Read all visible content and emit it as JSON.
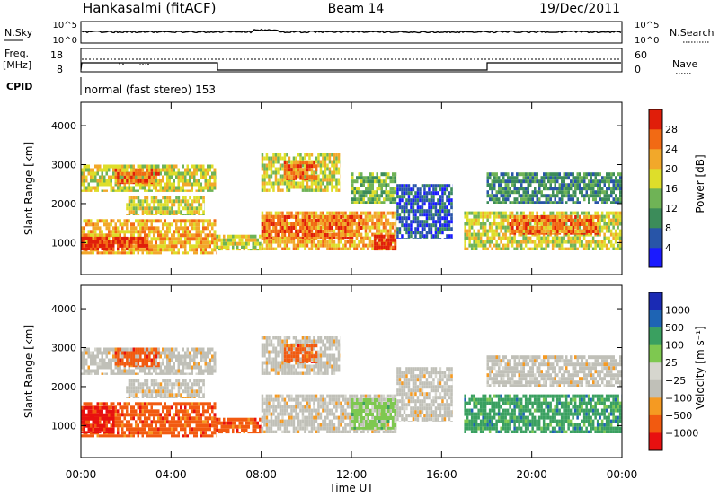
{
  "header": {
    "station": "Hankasalmi (fitACF)",
    "beam": "Beam 14",
    "date": "19/Dec/2011"
  },
  "noise_panel": {
    "left_label": "N.Sky",
    "right_label": "N.Search",
    "ticks": [
      "10^5",
      "10^0"
    ]
  },
  "freq_panel": {
    "left_label_line1": "Freq.",
    "left_label_line2": "[MHz]",
    "left_ticks": [
      "18",
      "8"
    ],
    "right_ticks": [
      "60",
      "0"
    ],
    "right_label": "Nave"
  },
  "cpid": {
    "label": "CPID",
    "text": "normal (fast stereo) 153"
  },
  "colors": {
    "power": [
      "#1a1aff",
      "#2855a8",
      "#3c8c5a",
      "#6fb356",
      "#dede2a",
      "#f2a82a",
      "#f26a14",
      "#e01e0a"
    ],
    "velocity": [
      "#e81010",
      "#f25a10",
      "#f59a22",
      "#c0c0b8",
      "#d6d6ce",
      "#7ec850",
      "#3aa060",
      "#1e64b4",
      "#1a2ab4"
    ]
  },
  "chart_data": [
    {
      "type": "heatmap",
      "name": "power",
      "ylabel": "Slant Range [km]",
      "xlabel": "",
      "x_ticks": [
        "00:00",
        "04:00",
        "08:00",
        "12:00",
        "16:00",
        "20:00",
        "00:00"
      ],
      "y_ticks": [
        "1000",
        "2000",
        "3000",
        "4000"
      ],
      "ylim": [
        180,
        4600
      ],
      "xlim_hours": [
        0,
        24
      ],
      "colorbar_label": "Power [dB]",
      "colorbar_ticks": [
        "4",
        "8",
        "12",
        "16",
        "20",
        "24",
        "28"
      ],
      "colorbar_range": [
        0,
        32
      ],
      "regions": [
        {
          "t": [
            0.0,
            6.0
          ],
          "r": [
            700,
            1600
          ],
          "v": 22
        },
        {
          "t": [
            0.0,
            3.0
          ],
          "r": [
            800,
            1150
          ],
          "v": 30
        },
        {
          "t": [
            0.0,
            6.0
          ],
          "r": [
            2300,
            3000
          ],
          "v": 18
        },
        {
          "t": [
            1.5,
            3.5
          ],
          "r": [
            2500,
            2900
          ],
          "v": 26
        },
        {
          "t": [
            2.0,
            5.5
          ],
          "r": [
            1700,
            2200
          ],
          "v": 16
        },
        {
          "t": [
            6.0,
            8.0
          ],
          "r": [
            800,
            1200
          ],
          "v": 16
        },
        {
          "t": [
            8.0,
            14.0
          ],
          "r": [
            800,
            1800
          ],
          "v": 22
        },
        {
          "t": [
            8.0,
            12.5
          ],
          "r": [
            1100,
            1700
          ],
          "v": 27
        },
        {
          "t": [
            13.0,
            14.0
          ],
          "r": [
            800,
            1200
          ],
          "v": 28
        },
        {
          "t": [
            8.0,
            11.5
          ],
          "r": [
            2300,
            3300
          ],
          "v": 18
        },
        {
          "t": [
            9.0,
            10.5
          ],
          "r": [
            2600,
            3100
          ],
          "v": 25
        },
        {
          "t": [
            12.0,
            14.0
          ],
          "r": [
            2000,
            2800
          ],
          "v": 12
        },
        {
          "t": [
            14.0,
            16.5
          ],
          "r": [
            1100,
            2500
          ],
          "v": 6
        },
        {
          "t": [
            17.0,
            24.0
          ],
          "r": [
            800,
            1800
          ],
          "v": 17
        },
        {
          "t": [
            19.0,
            23.0
          ],
          "r": [
            1200,
            1700
          ],
          "v": 25
        },
        {
          "t": [
            18.0,
            24.0
          ],
          "r": [
            2000,
            2800
          ],
          "v": 9
        }
      ]
    },
    {
      "type": "heatmap",
      "name": "velocity",
      "ylabel": "Slant Range [km]",
      "xlabel": "Time UT",
      "x_ticks": [
        "00:00",
        "04:00",
        "08:00",
        "12:00",
        "16:00",
        "20:00",
        "00:00"
      ],
      "y_ticks": [
        "1000",
        "2000",
        "3000",
        "4000"
      ],
      "ylim": [
        180,
        4600
      ],
      "xlim_hours": [
        0,
        24
      ],
      "colorbar_label": "Velocity [m s⁻¹]",
      "colorbar_ticks": [
        "1000",
        "500",
        "100",
        "25",
        "−25",
        "−100",
        "−500",
        "−1000"
      ],
      "regions": [
        {
          "t": [
            0.0,
            6.0
          ],
          "r": [
            700,
            1600
          ],
          "v": -150
        },
        {
          "t": [
            0.0,
            1.5
          ],
          "r": [
            800,
            1500
          ],
          "v": -600
        },
        {
          "t": [
            0.0,
            6.0
          ],
          "r": [
            2300,
            3000
          ],
          "v": 0
        },
        {
          "t": [
            1.5,
            3.5
          ],
          "r": [
            2500,
            3000
          ],
          "v": -300
        },
        {
          "t": [
            2.0,
            5.5
          ],
          "r": [
            1700,
            2200
          ],
          "v": 0
        },
        {
          "t": [
            6.0,
            8.0
          ],
          "r": [
            800,
            1200
          ],
          "v": -200
        },
        {
          "t": [
            8.0,
            14.0
          ],
          "r": [
            800,
            1800
          ],
          "v": 0
        },
        {
          "t": [
            8.0,
            11.5
          ],
          "r": [
            2300,
            3300
          ],
          "v": 0
        },
        {
          "t": [
            9.0,
            10.5
          ],
          "r": [
            2600,
            3100
          ],
          "v": -300
        },
        {
          "t": [
            12.0,
            14.0
          ],
          "r": [
            900,
            1700
          ],
          "v": 60
        },
        {
          "t": [
            14.0,
            16.5
          ],
          "r": [
            1100,
            2500
          ],
          "v": 0
        },
        {
          "t": [
            17.0,
            24.0
          ],
          "r": [
            800,
            1800
          ],
          "v": 200
        },
        {
          "t": [
            18.0,
            24.0
          ],
          "r": [
            2000,
            2800
          ],
          "v": 0
        }
      ]
    }
  ]
}
